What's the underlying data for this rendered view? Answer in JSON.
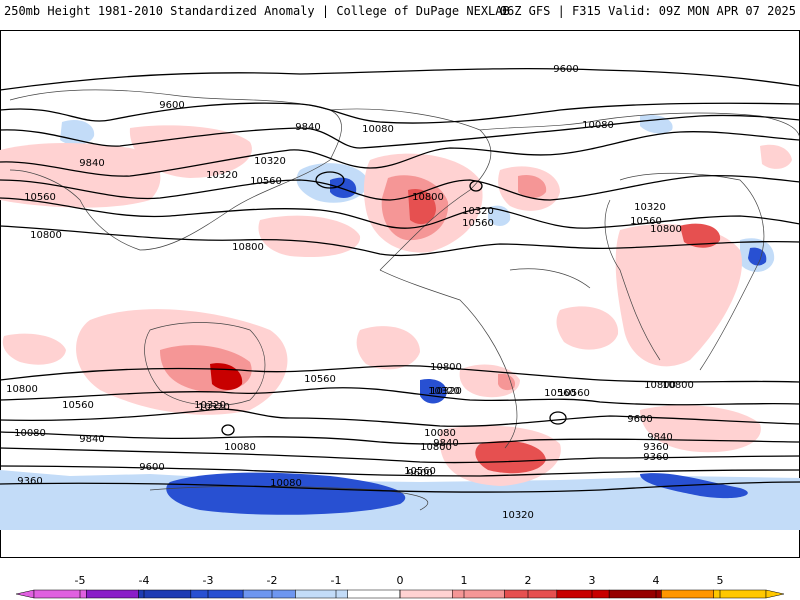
{
  "header": {
    "left_title": "250mb Height 1981-2010 Standardized Anomaly | College of DuPage NEXLAB",
    "right_title": "06Z GFS | F315 Valid: 09Z MON APR 07 2025"
  },
  "contour_labels": [
    "9600",
    "9600",
    "9840",
    "9840",
    "10080",
    "10080",
    "10320",
    "10320",
    "10560",
    "10560",
    "10800",
    "10800",
    "10800",
    "10320",
    "10560",
    "10800",
    "10320",
    "10560",
    "10800",
    "10320",
    "10560",
    "10800",
    "10560",
    "10320",
    "10080",
    "9840",
    "9600",
    "9360",
    "10800",
    "10560",
    "10320",
    "10080",
    "9840",
    "9600",
    "10800",
    "10560",
    "10320",
    "10080",
    "9840",
    "9600",
    "9360",
    "9360",
    "10080",
    "10320",
    "10560",
    "10800"
  ],
  "colorbar": {
    "ticks": [
      "-5",
      "-4",
      "-3",
      "-2",
      "-1",
      "0",
      "1",
      "2",
      "3",
      "4",
      "5"
    ],
    "colors": [
      "#e060e0",
      "#8a1ec8",
      "#1e3cb4",
      "#2850d2",
      "#6e96f0",
      "#c3dcf8",
      "#ffffff",
      "#ffd2d2",
      "#f59696",
      "#e65050",
      "#c80000",
      "#960000",
      "#ff9600",
      "#ffc800"
    ]
  }
}
